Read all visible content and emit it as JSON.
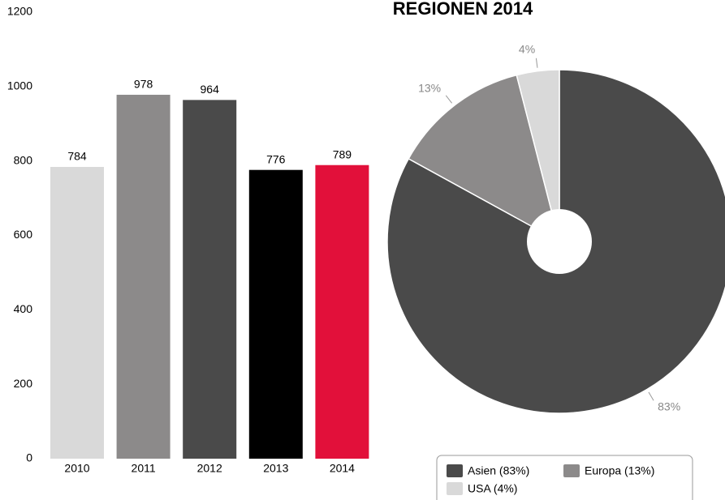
{
  "chart_data": [
    {
      "type": "bar",
      "categories": [
        "2010",
        "2011",
        "2012",
        "2013",
        "2014"
      ],
      "values": [
        784,
        978,
        964,
        776,
        789
      ],
      "colors": [
        "#d9d9d9",
        "#8c8a8a",
        "#4a4a4a",
        "#000000",
        "#e2103a"
      ],
      "ylim": [
        0,
        1200
      ],
      "yticks": [
        0,
        200,
        400,
        600,
        800,
        1000,
        1200
      ],
      "grid": false
    },
    {
      "type": "pie",
      "title": "REGIONEN 2014",
      "categories": [
        "Asien (83%)",
        "Europa (13%)",
        "USA (4%)"
      ],
      "values": [
        83,
        13,
        4
      ],
      "value_labels": [
        "83%",
        "13%",
        "4%"
      ],
      "colors": [
        "#4a4a4a",
        "#8c8a8a",
        "#d9d9d9"
      ],
      "legend": "bottom"
    }
  ]
}
